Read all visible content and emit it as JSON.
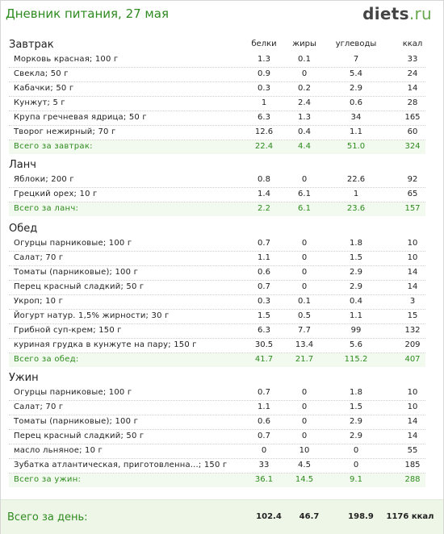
{
  "title": "Дневник питания, 27 мая",
  "logo": {
    "main": "diets",
    "suffix": ".ru"
  },
  "columns": [
    "белки",
    "жиры",
    "углеводы",
    "ккал"
  ],
  "sections": [
    {
      "name": "Завтрак",
      "items": [
        {
          "name": "Морковь красная; 100 г",
          "values": [
            "1.3",
            "0.1",
            "7",
            "33"
          ]
        },
        {
          "name": "Свекла; 50 г",
          "values": [
            "0.9",
            "0",
            "5.4",
            "24"
          ]
        },
        {
          "name": "Кабачки; 50 г",
          "values": [
            "0.3",
            "0.2",
            "2.9",
            "14"
          ]
        },
        {
          "name": "Кунжут; 5 г",
          "values": [
            "1",
            "2.4",
            "0.6",
            "28"
          ]
        },
        {
          "name": "Крупа гречневая ядрица; 50 г",
          "values": [
            "6.3",
            "1.3",
            "34",
            "165"
          ]
        },
        {
          "name": "Творог нежирный; 70 г",
          "values": [
            "12.6",
            "0.4",
            "1.1",
            "60"
          ]
        }
      ],
      "total": {
        "name": "Всего за завтрак:",
        "values": [
          "22.4",
          "4.4",
          "51.0",
          "324"
        ]
      }
    },
    {
      "name": "Ланч",
      "items": [
        {
          "name": "Яблоки; 200 г",
          "values": [
            "0.8",
            "0",
            "22.6",
            "92"
          ]
        },
        {
          "name": "Грецкий орех; 10 г",
          "values": [
            "1.4",
            "6.1",
            "1",
            "65"
          ]
        }
      ],
      "total": {
        "name": "Всего за ланч:",
        "values": [
          "2.2",
          "6.1",
          "23.6",
          "157"
        ]
      }
    },
    {
      "name": "Обед",
      "items": [
        {
          "name": "Огурцы парниковые; 100 г",
          "values": [
            "0.7",
            "0",
            "1.8",
            "10"
          ]
        },
        {
          "name": "Салат; 70 г",
          "values": [
            "1.1",
            "0",
            "1.5",
            "10"
          ]
        },
        {
          "name": "Томаты (парниковые); 100 г",
          "values": [
            "0.6",
            "0",
            "2.9",
            "14"
          ]
        },
        {
          "name": "Перец красный сладкий; 50 г",
          "values": [
            "0.7",
            "0",
            "2.9",
            "14"
          ]
        },
        {
          "name": "Укроп; 10 г",
          "values": [
            "0.3",
            "0.1",
            "0.4",
            "3"
          ]
        },
        {
          "name": "Йогурт натур. 1,5% жирности; 30 г",
          "values": [
            "1.5",
            "0.5",
            "1.1",
            "15"
          ]
        },
        {
          "name": "Грибной суп-крем; 150 г",
          "values": [
            "6.3",
            "7.7",
            "99",
            "132"
          ]
        },
        {
          "name": "куриная грудка в кунжуте на пару; 150 г",
          "values": [
            "30.5",
            "13.4",
            "5.6",
            "209"
          ]
        }
      ],
      "total": {
        "name": "Всего за обед:",
        "values": [
          "41.7",
          "21.7",
          "115.2",
          "407"
        ]
      }
    },
    {
      "name": "Ужин",
      "items": [
        {
          "name": "Огурцы парниковые; 100 г",
          "values": [
            "0.7",
            "0",
            "1.8",
            "10"
          ]
        },
        {
          "name": "Салат; 70 г",
          "values": [
            "1.1",
            "0",
            "1.5",
            "10"
          ]
        },
        {
          "name": "Томаты (парниковые); 100 г",
          "values": [
            "0.6",
            "0",
            "2.9",
            "14"
          ]
        },
        {
          "name": "Перец красный сладкий; 50 г",
          "values": [
            "0.7",
            "0",
            "2.9",
            "14"
          ]
        },
        {
          "name": "масло льняное; 10 г",
          "values": [
            "0",
            "10",
            "0",
            "55"
          ]
        },
        {
          "name": "Зубатка атлантическая, приготовленна...; 150 г",
          "values": [
            "33",
            "4.5",
            "0",
            "185"
          ]
        }
      ],
      "total": {
        "name": "Всего за ужин:",
        "values": [
          "36.1",
          "14.5",
          "9.1",
          "288"
        ]
      }
    }
  ],
  "day_total": {
    "name": "Всего за день:",
    "values": [
      "102.4",
      "46.7",
      "198.9",
      "1176 ккал"
    ]
  }
}
